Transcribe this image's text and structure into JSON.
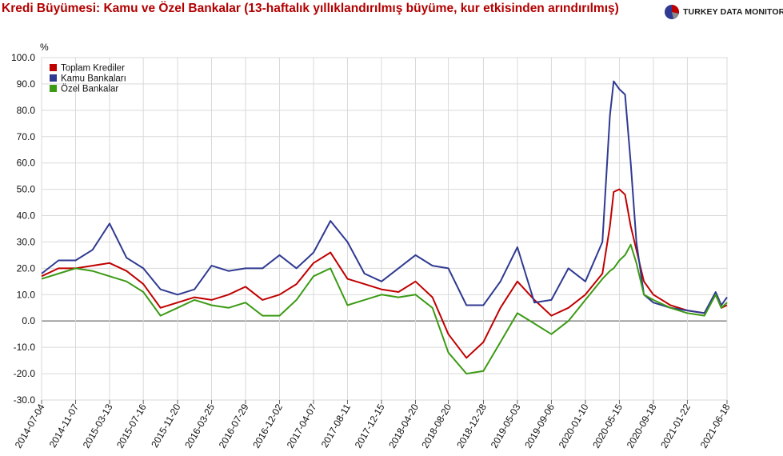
{
  "title": "Kredi Büyümesi: Kamu ve Özel Bankalar (13-haftalık yıllıklandırılmış büyüme, kur etkisinden arındırılmış)",
  "brand": {
    "name": "TURKEY DATA MONITOR",
    "logo": "pie-logo-icon"
  },
  "colors": {
    "title": "#b20000",
    "toplam": "#c00000",
    "kamu": "#2f3a91",
    "ozel": "#3c9a14",
    "grid": "#d9d9d9",
    "zero": "#7a7a7a"
  },
  "chart_data": {
    "type": "line",
    "title": "Kredi Büyümesi: Kamu ve Özel Bankalar (13-haftalık yıllıklandırılmış büyüme, kur etkisinden arındırılmış)",
    "ylabel": "%",
    "ylim": [
      -30,
      100
    ],
    "yticks": [
      "100.0",
      "90.0",
      "80.0",
      "70.0",
      "60.0",
      "50.0",
      "40.0",
      "30.0",
      "20.0",
      "10.0",
      "0.0",
      "-10.0",
      "-20.0",
      "-30.0"
    ],
    "xticks": [
      "2014-07-04",
      "2014-11-07",
      "2015-03-13",
      "2015-07-16",
      "2015-11-20",
      "2016-03-25",
      "2016-07-29",
      "2016-12-02",
      "2017-04-07",
      "2017-08-11",
      "2017-12-15",
      "2018-04-20",
      "2018-08-20",
      "2018-12-28",
      "2019-05-03",
      "2019-09-06",
      "2020-01-10",
      "2020-05-15",
      "2020-09-18",
      "2021-01-22",
      "2021-06-18"
    ],
    "grid": true,
    "legend_position": "top-left",
    "x": [
      "2014-07-04",
      "2014-09-05",
      "2014-11-07",
      "2015-01-09",
      "2015-03-13",
      "2015-05-15",
      "2015-07-16",
      "2015-09-18",
      "2015-11-20",
      "2016-01-22",
      "2016-03-25",
      "2016-05-27",
      "2016-07-29",
      "2016-09-30",
      "2016-12-02",
      "2017-02-03",
      "2017-04-07",
      "2017-06-09",
      "2017-08-11",
      "2017-10-13",
      "2017-12-15",
      "2018-02-16",
      "2018-04-20",
      "2018-06-22",
      "2018-08-20",
      "2018-10-26",
      "2018-12-28",
      "2019-03-01",
      "2019-05-03",
      "2019-07-05",
      "2019-09-06",
      "2019-11-08",
      "2020-01-10",
      "2020-03-13",
      "2020-04-10",
      "2020-04-24",
      "2020-05-15",
      "2020-06-05",
      "2020-06-26",
      "2020-07-17",
      "2020-08-14",
      "2020-09-18",
      "2020-11-20",
      "2021-01-22",
      "2021-03-26",
      "2021-05-07",
      "2021-05-28",
      "2021-06-18"
    ],
    "series": [
      {
        "name": "Toplam Krediler",
        "color": "#c00000",
        "values": [
          17,
          20,
          20,
          21,
          22,
          19,
          14,
          5,
          7,
          9,
          8,
          10,
          13,
          8,
          10,
          14,
          22,
          26,
          16,
          14,
          12,
          11,
          15,
          9,
          -5,
          -14,
          -8,
          5,
          15,
          8,
          2,
          5,
          10,
          18,
          36,
          49,
          50,
          48,
          36,
          27,
          15,
          10,
          6,
          4,
          3,
          10,
          5,
          6
        ]
      },
      {
        "name": "Kamu Bankaları",
        "color": "#2f3a91",
        "values": [
          18,
          23,
          23,
          27,
          37,
          24,
          20,
          12,
          10,
          12,
          21,
          19,
          20,
          20,
          25,
          20,
          26,
          38,
          30,
          18,
          15,
          20,
          25,
          21,
          20,
          6,
          6,
          15,
          28,
          7,
          8,
          20,
          15,
          30,
          78,
          91,
          88,
          86,
          60,
          30,
          10,
          7,
          5,
          4,
          3,
          11,
          6,
          9
        ]
      },
      {
        "name": "Özel Bankalar",
        "color": "#3c9a14",
        "values": [
          16,
          18,
          20,
          19,
          17,
          15,
          11,
          2,
          5,
          8,
          6,
          5,
          7,
          2,
          2,
          8,
          17,
          20,
          6,
          8,
          10,
          9,
          10,
          5,
          -12,
          -20,
          -19,
          -8,
          3,
          -1,
          -5,
          0,
          8,
          16,
          19,
          20,
          23,
          25,
          29,
          22,
          10,
          8,
          5,
          3,
          2,
          10,
          5,
          7
        ]
      }
    ]
  }
}
